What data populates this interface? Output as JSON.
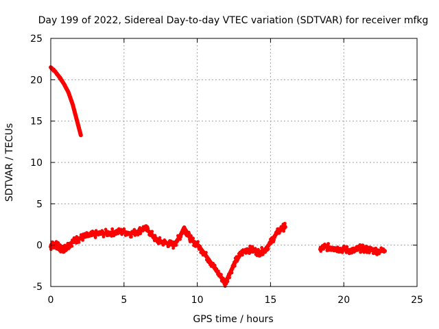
{
  "chart_data": {
    "type": "scatter",
    "title": "Day 199 of 2022, Sidereal Day-to-day VTEC variation (SDTVAR) for receiver mfkg",
    "xlabel": "GPS time / hours",
    "ylabel": "SDTVAR / TECUs",
    "xlim": [
      0,
      25
    ],
    "ylim": [
      -5,
      25
    ],
    "xticks": [
      "0",
      "5",
      "10",
      "15",
      "20",
      "25"
    ],
    "yticks": [
      "-5",
      "0",
      "5",
      "10",
      "15",
      "20",
      "25"
    ],
    "grid": true,
    "legend": "none",
    "series": [
      {
        "name": "SDTVAR",
        "color": "#ff0000",
        "segments": [
          [
            [
              0.0,
              21.5
            ],
            [
              0.3,
              21.0
            ],
            [
              0.6,
              20.3
            ],
            [
              0.9,
              19.5
            ],
            [
              1.2,
              18.5
            ],
            [
              1.5,
              17.0
            ],
            [
              1.8,
              15.0
            ],
            [
              2.05,
              13.3
            ]
          ],
          [
            [
              0.0,
              -0.2
            ],
            [
              0.2,
              0.1
            ],
            [
              0.4,
              0.0
            ],
            [
              0.6,
              -0.3
            ],
            [
              0.8,
              -0.5
            ],
            [
              1.0,
              -0.3
            ],
            [
              1.2,
              0.0
            ],
            [
              1.5,
              0.4
            ],
            [
              1.8,
              0.7
            ],
            [
              2.1,
              0.9
            ],
            [
              2.5,
              1.1
            ],
            [
              3.0,
              1.3
            ],
            [
              3.5,
              1.4
            ],
            [
              4.0,
              1.5
            ],
            [
              4.5,
              1.6
            ],
            [
              5.0,
              1.6
            ],
            [
              5.5,
              1.4
            ],
            [
              6.0,
              1.7
            ],
            [
              6.4,
              2.1
            ],
            [
              6.8,
              1.5
            ],
            [
              7.2,
              0.6
            ],
            [
              7.6,
              0.4
            ],
            [
              8.0,
              0.2
            ],
            [
              8.4,
              0.0
            ],
            [
              8.8,
              1.0
            ],
            [
              9.1,
              2.1
            ],
            [
              9.3,
              1.5
            ],
            [
              9.6,
              0.6
            ],
            [
              10.0,
              0.1
            ],
            [
              10.4,
              -0.8
            ],
            [
              10.8,
              -1.8
            ],
            [
              11.2,
              -2.8
            ],
            [
              11.6,
              -3.8
            ],
            [
              11.9,
              -4.6
            ],
            [
              12.2,
              -3.5
            ],
            [
              12.6,
              -2.0
            ],
            [
              13.0,
              -1.0
            ],
            [
              13.4,
              -0.5
            ],
            [
              13.8,
              -0.6
            ],
            [
              14.2,
              -0.9
            ],
            [
              14.6,
              -0.6
            ],
            [
              15.0,
              0.3
            ],
            [
              15.4,
              1.4
            ],
            [
              15.8,
              2.1
            ],
            [
              16.0,
              2.2
            ]
          ],
          [
            [
              18.4,
              -0.5
            ],
            [
              18.7,
              -0.2
            ],
            [
              19.1,
              -0.3
            ],
            [
              19.5,
              -0.4
            ],
            [
              19.9,
              -0.5
            ],
            [
              20.3,
              -0.6
            ],
            [
              20.7,
              -0.7
            ],
            [
              21.1,
              -0.4
            ],
            [
              21.5,
              -0.5
            ],
            [
              21.9,
              -0.6
            ],
            [
              22.3,
              -0.7
            ],
            [
              22.8,
              -0.7
            ]
          ]
        ]
      }
    ]
  }
}
